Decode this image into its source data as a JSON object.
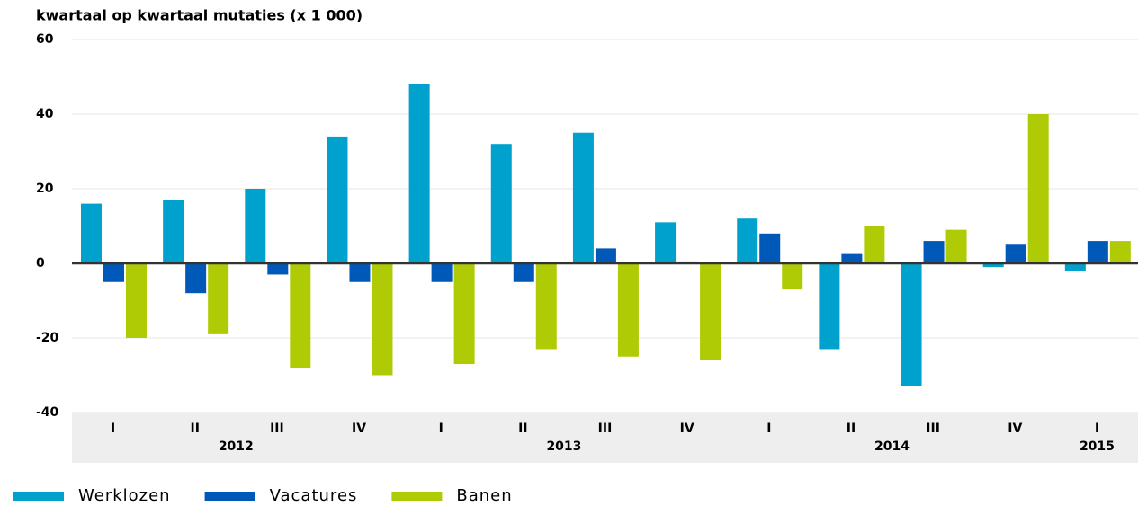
{
  "chart_data": {
    "type": "bar",
    "title": "kwartaal op kwartaal mutaties (x 1 000)",
    "categories": [
      "I",
      "II",
      "III",
      "IV",
      "I",
      "II",
      "III",
      "IV",
      "I",
      "II",
      "III",
      "IV",
      "I"
    ],
    "years": [
      "2012",
      null,
      null,
      null,
      "2013",
      null,
      null,
      null,
      "2014",
      null,
      null,
      null,
      "2015"
    ],
    "series": [
      {
        "name": "Werklozen",
        "color": "#00a1cd",
        "values": [
          16,
          17,
          20,
          34,
          48,
          32,
          35,
          11,
          12,
          -23,
          -33,
          -1,
          -2
        ]
      },
      {
        "name": "Vacatures",
        "color": "#0058b8",
        "values": [
          -5,
          -8,
          -3,
          -5,
          -5,
          -5,
          4,
          0.5,
          8,
          2.5,
          6,
          5,
          6
        ]
      },
      {
        "name": "Banen",
        "color": "#afcb05",
        "values": [
          -20,
          -19,
          -28,
          -30,
          -27,
          -23,
          -25,
          -26,
          -7,
          10,
          9,
          40,
          6
        ]
      }
    ],
    "ylim": [
      -40,
      60
    ],
    "yticks": [
      -40,
      -20,
      0,
      20,
      40,
      60
    ],
    "grid": true,
    "legend": "bottom"
  }
}
